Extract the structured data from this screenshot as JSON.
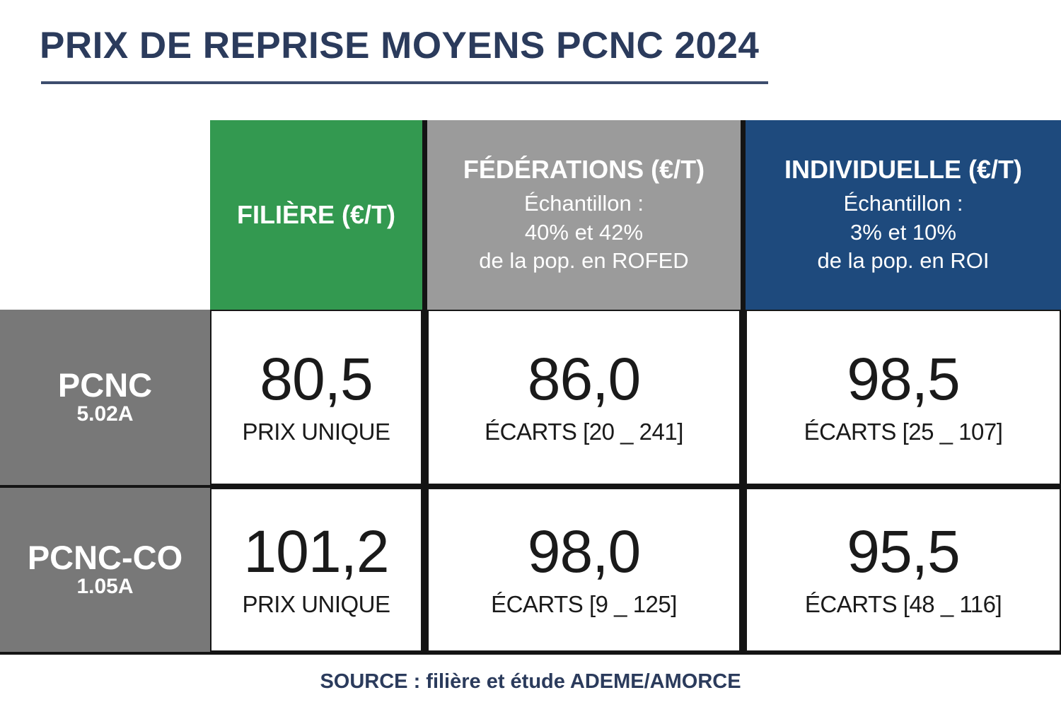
{
  "title": "PRIX DE REPRISE MOYENS PCNC 2024",
  "source": "SOURCE : filière et étude ADEME/AMORCE",
  "colors": {
    "title_navy": "#2b3b5c",
    "filiere_green": "#339950",
    "federations_gray": "#9b9b9b",
    "individuelle_blue": "#1e4a7d",
    "row_header_gray": "#787878",
    "grid_line_black": "#141414",
    "cell_text": "#1a1a1a"
  },
  "table": {
    "columns": [
      {
        "label": "FILIÈRE (€/T)",
        "subtitle_lines": []
      },
      {
        "label": "FÉDÉRATIONS (€/T)",
        "subtitle_lines": [
          "Échantillon :",
          "40% et 42%",
          "de la pop. en ROFED"
        ]
      },
      {
        "label": "INDIVIDUELLE (€/T)",
        "subtitle_lines": [
          "Échantillon :",
          "3% et 10%",
          "de la pop. en ROI"
        ]
      }
    ],
    "rows": [
      {
        "name": "PCNC",
        "code": "5.02A",
        "cells": [
          {
            "value": "80,5",
            "label": "PRIX UNIQUE"
          },
          {
            "value": "86,0",
            "label": "ÉCARTS [20 _ 241]"
          },
          {
            "value": "98,5",
            "label": "ÉCARTS [25 _ 107]"
          }
        ]
      },
      {
        "name": "PCNC-CO",
        "code": "1.05A",
        "cells": [
          {
            "value": "101,2",
            "label": "PRIX UNIQUE"
          },
          {
            "value": "98,0",
            "label": "ÉCARTS [9 _ 125]"
          },
          {
            "value": "95,5",
            "label": "ÉCARTS [48 _ 116]"
          }
        ]
      }
    ]
  },
  "chart_data": {
    "type": "table",
    "title": "PRIX DE REPRISE MOYENS PCNC 2024",
    "columns": [
      "FILIÈRE (€/T)",
      "FÉDÉRATIONS (€/T)",
      "INDIVIDUELLE (€/T)"
    ],
    "column_samples": [
      "",
      "Échantillon : 40% et 42% de la pop. en ROFED",
      "Échantillon : 3% et 10% de la pop. en ROI"
    ],
    "rows": [
      {
        "name": "PCNC",
        "code": "5.02A",
        "filiere_eur_per_t": 80.5,
        "filiere_note": "PRIX UNIQUE",
        "federations_eur_per_t": 86.0,
        "federations_ecarts": [
          20,
          241
        ],
        "individuelle_eur_per_t": 98.5,
        "individuelle_ecarts": [
          25,
          107
        ]
      },
      {
        "name": "PCNC-CO",
        "code": "1.05A",
        "filiere_eur_per_t": 101.2,
        "filiere_note": "PRIX UNIQUE",
        "federations_eur_per_t": 98.0,
        "federations_ecarts": [
          9,
          125
        ],
        "individuelle_eur_per_t": 95.5,
        "individuelle_ecarts": [
          48,
          116
        ]
      }
    ],
    "source": "SOURCE : filière et étude ADEME/AMORCE"
  }
}
